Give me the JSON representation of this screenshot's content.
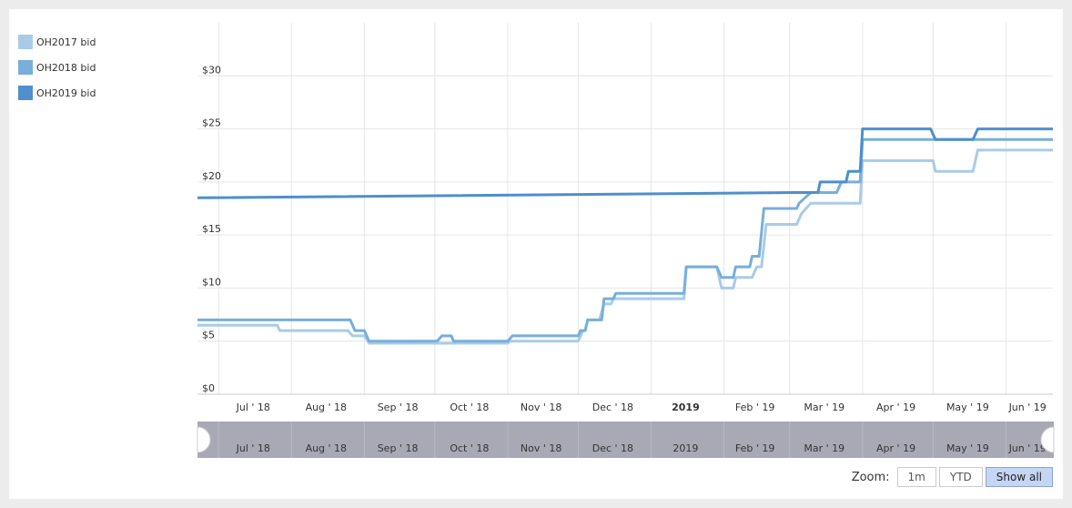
{
  "legend": [
    {
      "name": "OH2017 bid",
      "color": "#a9cbe8"
    },
    {
      "name": "OH2018 bid",
      "color": "#78aedb"
    },
    {
      "name": "OH2019 bid",
      "color": "#4e8fcc"
    }
  ],
  "zoom": {
    "label": "Zoom:",
    "buttons": [
      "1m",
      "YTD",
      "Show all"
    ],
    "active": "Show all"
  },
  "navigator": {
    "labels": [
      "Jul ' 18",
      "Aug ' 18",
      "Sep ' 18",
      "Oct ' 18",
      "Nov ' 18",
      "Dec ' 18",
      "2019",
      "Feb ' 19",
      "Mar ' 19",
      "Apr ' 19",
      "May ' 19",
      "Jun ' 19"
    ]
  },
  "chart_data": {
    "type": "line",
    "title": "",
    "xlabel": "",
    "ylabel": "",
    "x_tick_labels": [
      "Jul ' 18",
      "Aug ' 18",
      "Sep ' 18",
      "Oct ' 18",
      "Nov ' 18",
      "Dec ' 18",
      "2019",
      "Feb ' 19",
      "Mar ' 19",
      "Apr ' 19",
      "May ' 19",
      "Jun ' 19"
    ],
    "x_tick_dates": [
      "2018-07-01",
      "2018-08-01",
      "2018-09-01",
      "2018-10-01",
      "2018-11-01",
      "2018-12-01",
      "2019-01-01",
      "2019-02-01",
      "2019-03-01",
      "2019-04-01",
      "2019-05-01",
      "2019-06-01"
    ],
    "x_tick_bold": [
      false,
      false,
      false,
      false,
      false,
      false,
      true,
      false,
      false,
      false,
      false,
      false
    ],
    "xlim": [
      "2018-06-22",
      "2019-06-21"
    ],
    "y_ticks": [
      0,
      5,
      10,
      15,
      20,
      25,
      30
    ],
    "y_tick_labels": [
      "$0",
      "$5",
      "$10",
      "$15",
      "$20",
      "$25",
      "$30"
    ],
    "ylim": [
      0,
      35
    ],
    "grid": true,
    "legend_position": "top-left",
    "series": [
      {
        "name": "OH2017 bid",
        "color": "#a9cbe8",
        "points": [
          [
            "2018-06-22",
            6.5
          ],
          [
            "2018-07-26",
            6.5
          ],
          [
            "2018-07-27",
            6.0
          ],
          [
            "2018-08-25",
            6.0
          ],
          [
            "2018-08-27",
            5.5
          ],
          [
            "2018-09-01",
            5.5
          ],
          [
            "2018-09-03",
            4.8
          ],
          [
            "2018-11-01",
            4.8
          ],
          [
            "2018-11-02",
            5.0
          ],
          [
            "2018-12-01",
            5.0
          ],
          [
            "2018-12-03",
            6.0
          ],
          [
            "2018-12-04",
            6.0
          ],
          [
            "2018-12-05",
            7.0
          ],
          [
            "2018-12-10",
            7.0
          ],
          [
            "2018-12-12",
            8.5
          ],
          [
            "2018-12-15",
            8.5
          ],
          [
            "2018-12-16",
            9.0
          ],
          [
            "2019-01-15",
            9.0
          ],
          [
            "2019-01-16",
            12.0
          ],
          [
            "2019-01-29",
            12.0
          ],
          [
            "2019-01-31",
            10.0
          ],
          [
            "2019-02-05",
            10.0
          ],
          [
            "2019-02-06",
            11.0
          ],
          [
            "2019-02-13",
            11.0
          ],
          [
            "2019-02-15",
            12.0
          ],
          [
            "2019-02-17",
            12.0
          ],
          [
            "2019-02-19",
            16.0
          ],
          [
            "2019-03-04",
            16.0
          ],
          [
            "2019-03-06",
            17.0
          ],
          [
            "2019-03-08",
            17.5
          ],
          [
            "2019-03-10",
            18.0
          ],
          [
            "2019-03-31",
            18.0
          ],
          [
            "2019-04-01",
            22.0
          ],
          [
            "2019-05-01",
            22.0
          ],
          [
            "2019-05-02",
            21.0
          ],
          [
            "2019-05-18",
            21.0
          ],
          [
            "2019-05-20",
            23.0
          ],
          [
            "2019-06-21",
            23.0
          ]
        ]
      },
      {
        "name": "OH2018 bid",
        "color": "#78aedb",
        "points": [
          [
            "2018-06-22",
            7.0
          ],
          [
            "2018-08-26",
            7.0
          ],
          [
            "2018-08-28",
            6.0
          ],
          [
            "2018-09-01",
            6.0
          ],
          [
            "2018-09-03",
            5.0
          ],
          [
            "2018-10-02",
            5.0
          ],
          [
            "2018-10-04",
            5.5
          ],
          [
            "2018-10-08",
            5.5
          ],
          [
            "2018-10-09",
            5.0
          ],
          [
            "2018-11-01",
            5.0
          ],
          [
            "2018-11-03",
            5.5
          ],
          [
            "2018-12-01",
            5.5
          ],
          [
            "2018-12-02",
            6.0
          ],
          [
            "2018-12-04",
            6.0
          ],
          [
            "2018-12-05",
            7.0
          ],
          [
            "2018-12-11",
            7.0
          ],
          [
            "2018-12-12",
            9.0
          ],
          [
            "2018-12-16",
            9.0
          ],
          [
            "2018-12-17",
            9.5
          ],
          [
            "2019-01-15",
            9.5
          ],
          [
            "2019-01-16",
            12.0
          ],
          [
            "2019-01-29",
            12.0
          ],
          [
            "2019-01-31",
            11.0
          ],
          [
            "2019-02-05",
            11.0
          ],
          [
            "2019-02-06",
            12.0
          ],
          [
            "2019-02-12",
            12.0
          ],
          [
            "2019-02-13",
            13.0
          ],
          [
            "2019-02-16",
            13.0
          ],
          [
            "2019-02-18",
            17.5
          ],
          [
            "2019-03-04",
            17.5
          ],
          [
            "2019-03-05",
            18.0
          ],
          [
            "2019-03-10",
            19.0
          ],
          [
            "2019-03-21",
            19.0
          ],
          [
            "2019-03-23",
            20.0
          ],
          [
            "2019-03-31",
            20.0
          ],
          [
            "2019-04-01",
            24.0
          ],
          [
            "2019-06-21",
            24.0
          ]
        ]
      },
      {
        "name": "OH2019 bid",
        "color": "#4e8fcc",
        "points": [
          [
            "2018-03-01",
            18.5
          ],
          [
            "2019-03-03",
            19.0
          ],
          [
            "2019-03-13",
            19.0
          ],
          [
            "2019-03-14",
            20.0
          ],
          [
            "2019-03-25",
            20.0
          ],
          [
            "2019-03-26",
            21.0
          ],
          [
            "2019-03-31",
            21.0
          ],
          [
            "2019-04-01",
            25.0
          ],
          [
            "2019-04-30",
            25.0
          ],
          [
            "2019-05-02",
            24.0
          ],
          [
            "2019-05-18",
            24.0
          ],
          [
            "2019-05-20",
            25.0
          ],
          [
            "2019-06-21",
            25.0
          ]
        ]
      }
    ]
  }
}
